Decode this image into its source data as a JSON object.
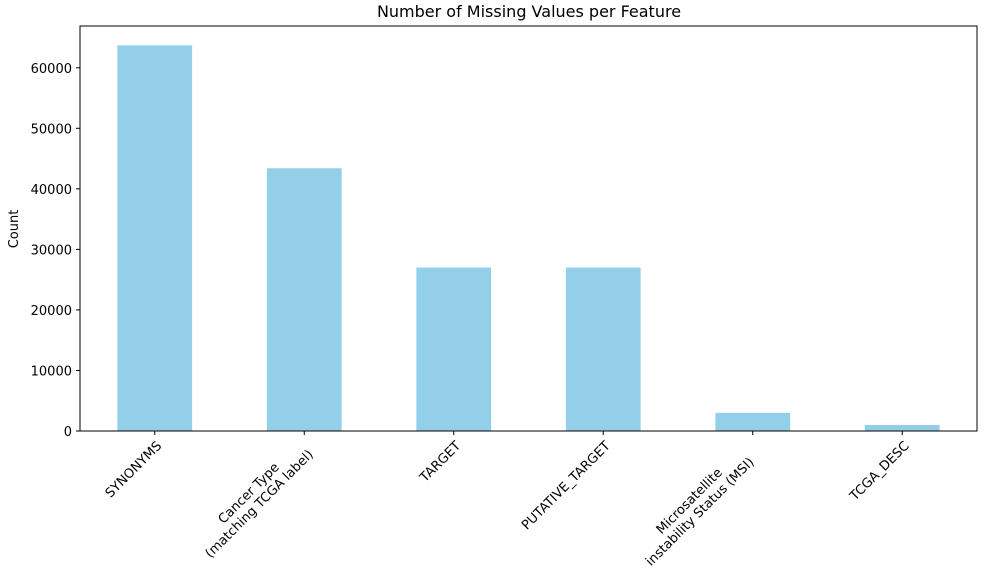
{
  "chart_data": {
    "type": "bar",
    "title": "Number of Missing Values per Feature",
    "xlabel": "",
    "ylabel": "Count",
    "categories": [
      [
        "SYNONYMS"
      ],
      [
        "Cancer Type",
        "(matching TCGA label)"
      ],
      [
        "TARGET"
      ],
      [
        "PUTATIVE_TARGET"
      ],
      [
        "Microsatellite",
        "instability Status (MSI)"
      ],
      [
        "TCGA_DESC"
      ]
    ],
    "values": [
      63700,
      43400,
      27000,
      27000,
      3000,
      1000
    ],
    "ylim": [
      0,
      66900
    ],
    "yticks": [
      0,
      10000,
      20000,
      30000,
      40000,
      50000,
      60000
    ],
    "bar_color": "#93cfe9",
    "grid": false
  }
}
